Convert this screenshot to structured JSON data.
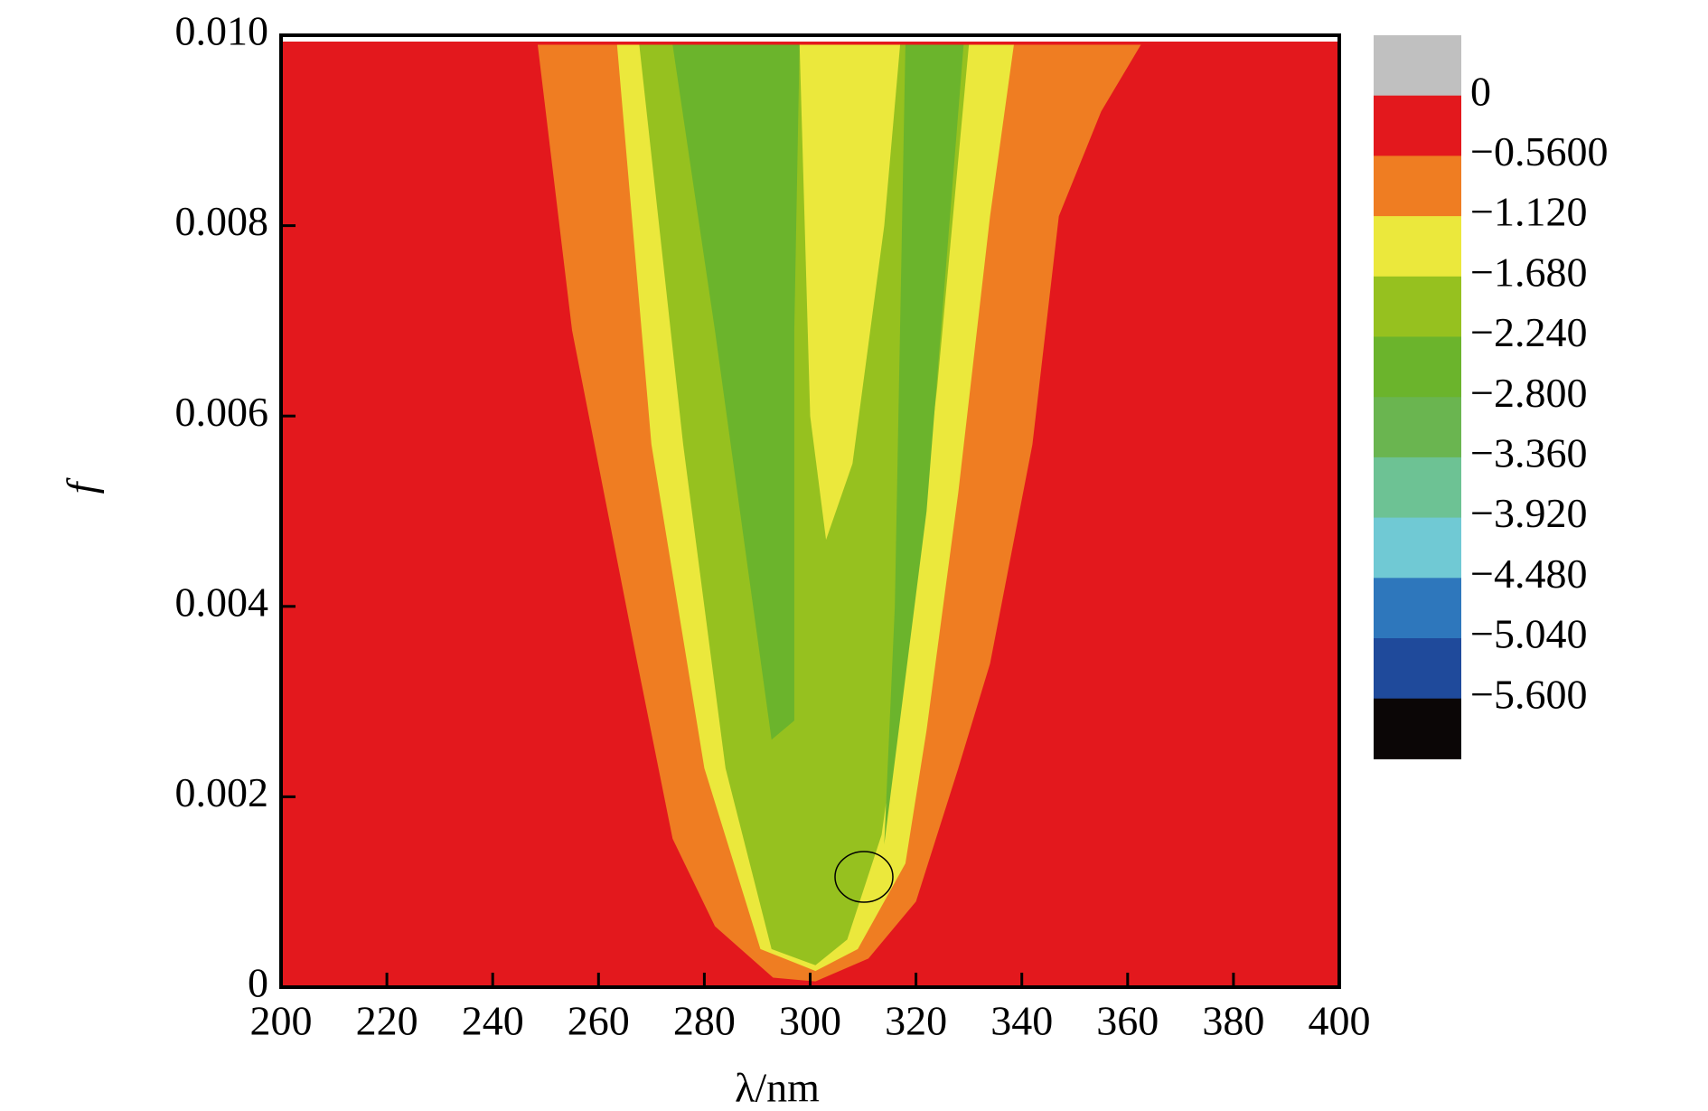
{
  "chart_data": {
    "type": "contour",
    "xlabel": "λ/nm",
    "ylabel": "f",
    "xlim": [
      200,
      400
    ],
    "xticks": [
      200,
      220,
      240,
      260,
      280,
      300,
      320,
      340,
      360,
      380,
      400
    ],
    "ylim": [
      0,
      0.01
    ],
    "yticks": [
      0,
      0.002,
      0.004,
      0.006,
      0.008,
      {
        "value": 0.01,
        "label": "0.010"
      }
    ],
    "levels": [
      {
        "value": 0,
        "label": "0"
      },
      {
        "value": -0.56,
        "label": "−0.5600"
      },
      {
        "value": -1.12,
        "label": "−1.120"
      },
      {
        "value": -1.68,
        "label": "−1.680"
      },
      {
        "value": -2.24,
        "label": "−2.240"
      },
      {
        "value": -2.8,
        "label": "−2.800"
      },
      {
        "value": -3.36,
        "label": "−3.360"
      },
      {
        "value": -3.92,
        "label": "−3.920"
      },
      {
        "value": -4.48,
        "label": "−4.480"
      },
      {
        "value": -5.04,
        "label": "−5.040"
      },
      {
        "value": -5.6,
        "label": "−5.600"
      }
    ],
    "colors": [
      "#c0c0c0",
      "#e3181d",
      "#ef7d22",
      "#ebe83c",
      "#96c11f",
      "#6bb42c",
      "#6ab550",
      "#6dc294",
      "#70c9d4",
      "#2e77bc",
      "#1f4a9b",
      "#0b0606"
    ],
    "background_band": 1,
    "contours": [
      {
        "band": 2,
        "x": [
          248.5,
          255,
          267,
          274,
          282,
          293,
          301,
          311,
          320,
          328,
          334,
          342,
          347,
          355,
          362.5
        ],
        "y": [
          0.0099,
          0.0069,
          0.0035,
          0.00156,
          0.00064,
          0.0001,
          6e-05,
          0.0003,
          0.0009,
          0.0023,
          0.0034,
          0.0057,
          0.0081,
          0.0092,
          0.0099
        ]
      },
      {
        "band": 3,
        "x": [
          263.5,
          270,
          280,
          290.6,
          301,
          309,
          318,
          322,
          328,
          334,
          338.5
        ],
        "y": [
          0.0099,
          0.0057,
          0.0023,
          0.0004,
          0.00017,
          0.0004,
          0.0013,
          0.0027,
          0.0052,
          0.0081,
          0.0099
        ]
      },
      {
        "band": 4,
        "x": [
          267.7,
          276,
          284,
          292.7,
          301,
          307,
          313.5,
          318,
          324,
          330
        ],
        "y": [
          0.0099,
          0.0057,
          0.0023,
          0.0004,
          0.00023,
          0.0005,
          0.0016,
          0.0034,
          0.0063,
          0.0099
        ]
      },
      {
        "band": 5,
        "x": [
          274,
          282,
          292.7,
          297,
          297,
          298
        ],
        "y": [
          0.0099,
          0.0069,
          0.0026,
          0.0028,
          0.0069,
          0.0099
        ]
      },
      {
        "band": 3,
        "x": [
          298,
          300,
          303,
          308,
          314,
          317
        ],
        "y": [
          0.0099,
          0.006,
          0.0047,
          0.0055,
          0.008,
          0.0099
        ]
      },
      {
        "band": 5,
        "x": [
          318,
          316,
          314,
          322,
          329
        ],
        "y": [
          0.0099,
          0.004,
          0.0015,
          0.005,
          0.0099
        ]
      }
    ]
  }
}
